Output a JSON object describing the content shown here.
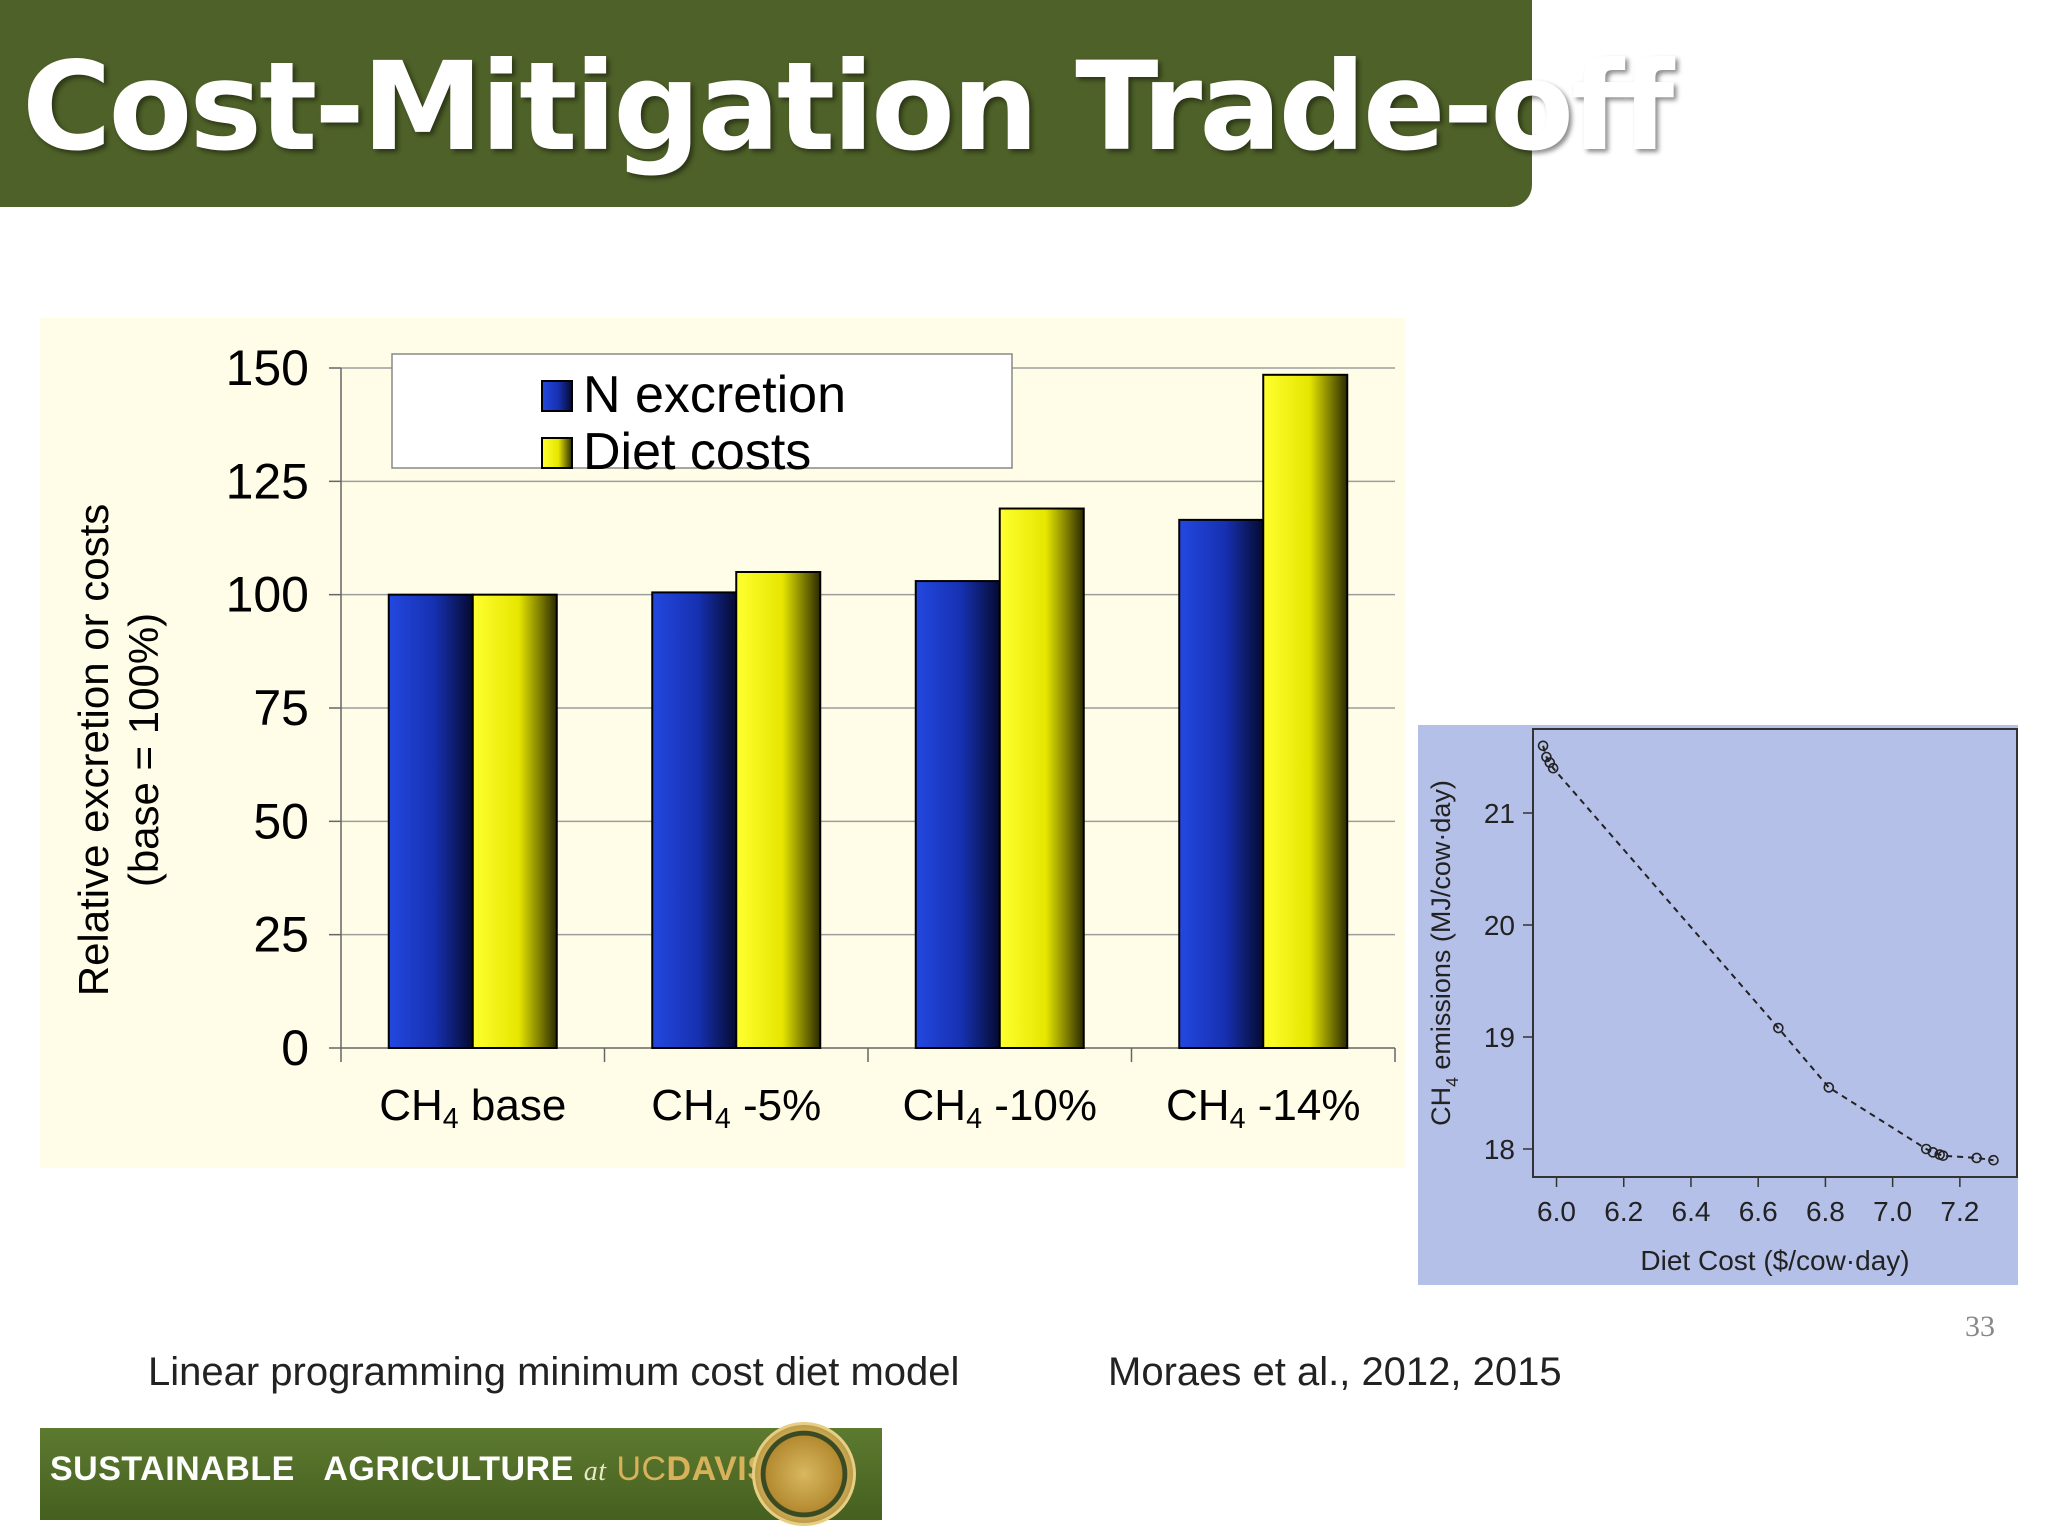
{
  "slide": {
    "title": "Cost-Mitigation Trade-off",
    "caption_left": "Linear programming minimum cost diet model",
    "caption_right": "Moraes et al., 2012, 2015",
    "page_number": "33",
    "logo": {
      "word1": "SUSTAINABLE",
      "word2": "AGRICULTURE",
      "at": "at",
      "uc": "UC",
      "davis": "DAVIS"
    }
  },
  "chart_data": [
    {
      "type": "bar",
      "categories": [
        "CH4 base",
        "CH4 -5%",
        "CH4 -10%",
        "CH4 -14%"
      ],
      "category_labels": [
        {
          "prefix": "CH",
          "sub": "4",
          "suffix": " base"
        },
        {
          "prefix": "CH",
          "sub": "4",
          "suffix": " -5%"
        },
        {
          "prefix": "CH",
          "sub": "4",
          "suffix": " -10%"
        },
        {
          "prefix": "CH",
          "sub": "4",
          "suffix": " -14%"
        }
      ],
      "series": [
        {
          "name": "N excretion",
          "values": [
            100,
            100.5,
            103,
            116.5
          ],
          "color": "#1a3cc8"
        },
        {
          "name": "Diet costs",
          "values": [
            100,
            105,
            119,
            148.5
          ],
          "color": "#ffff00"
        }
      ],
      "ylabel_line1": "Relative excretion or costs",
      "ylabel_line2": "(base = 100%)",
      "ylim": [
        0,
        150
      ],
      "yticks": [
        0,
        25,
        50,
        75,
        100,
        125,
        150
      ],
      "grid": true,
      "legend_position": "top"
    },
    {
      "type": "scatter",
      "xlabel": "Diet Cost ($/cow·day)",
      "ylabel": {
        "prefix": "CH",
        "sub": "4",
        "suffix": " emissions (MJ/cow·day)"
      },
      "xlim": [
        5.93,
        7.37
      ],
      "ylim": [
        17.75,
        21.75
      ],
      "xticks": [
        "6.0",
        "6.2",
        "6.4",
        "6.6",
        "6.8",
        "7.0",
        "7.2"
      ],
      "yticks": [
        "18",
        "19",
        "20",
        "21"
      ],
      "x": [
        5.96,
        5.97,
        5.98,
        5.99,
        6.66,
        6.81,
        7.1,
        7.12,
        7.14,
        7.15,
        7.25,
        7.3
      ],
      "y": [
        21.6,
        21.5,
        21.45,
        21.4,
        19.08,
        18.55,
        18.0,
        17.97,
        17.95,
        17.94,
        17.92,
        17.9
      ],
      "grid": false
    }
  ]
}
